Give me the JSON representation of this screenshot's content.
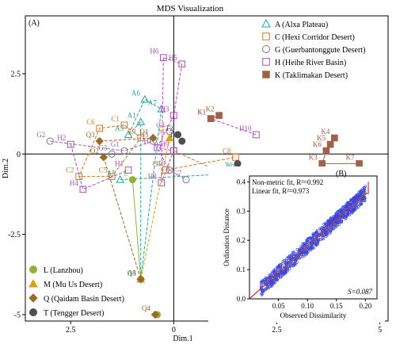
{
  "chart_data": [
    {
      "type": "scatter",
      "title": "MDS Visualization",
      "panel_label": "(A)",
      "xlabel": "Dim.1",
      "ylabel": "Dim.2",
      "xlim": [
        3.6,
        -5.2
      ],
      "ylim": [
        -5.2,
        4.3
      ],
      "x_ticks": [
        2.5,
        0,
        -2.5,
        -5
      ],
      "x_tick_labels": [
        "2.5",
        "0",
        "2.5",
        "5"
      ],
      "y_ticks": [
        2.5,
        0,
        -2.5,
        -5
      ],
      "y_tick_labels": [
        "2.5",
        "0",
        "-2.5",
        "-5"
      ],
      "reference_lines": {
        "x": 0,
        "y": 0
      },
      "grid": false,
      "legend_placement": [
        "top-right",
        "bottom-left"
      ],
      "series": [
        {
          "key": "A",
          "name": "A (Alxa Plateau)",
          "color": "#2aa198",
          "marker": "triangle-open",
          "lines": [
            [
              0,
              1,
              2,
              3,
              4,
              0
            ],
            [
              5,
              6,
              7
            ]
          ],
          "points": [
            {
              "label": "A1",
              "x": 0.8,
              "y": 1.0
            },
            {
              "label": "A3",
              "x": 1.1,
              "y": 0.6
            },
            {
              "label": "A6",
              "x": 0.7,
              "y": 1.7
            },
            {
              "label": "A7",
              "x": 0.3,
              "y": 1.4
            },
            {
              "label": "A4",
              "x": 0.8,
              "y": -3.9
            },
            {
              "label": "A5",
              "x": 1.3,
              "y": -0.8
            },
            {
              "label": "A2",
              "x": -1.6,
              "y": -0.6
            },
            {
              "label": "T1",
              "x": -1.55,
              "y": -0.55
            }
          ]
        },
        {
          "key": "C",
          "name": "C (Hexi Corridor Desert)",
          "color": "#c8792a",
          "marker": "square-open",
          "lines": [
            [
              0,
              1,
              2,
              3,
              4,
              0
            ],
            [
              5,
              6
            ],
            [
              7,
              8
            ]
          ],
          "points": [
            {
              "label": "C1",
              "x": 1.2,
              "y": 0.9
            },
            {
              "label": "C6",
              "x": 1.8,
              "y": 0.8
            },
            {
              "label": "C2",
              "x": 2.3,
              "y": -0.7
            },
            {
              "label": "C5",
              "x": 1.5,
              "y": -0.7
            },
            {
              "label": "C3",
              "x": 0.8,
              "y": 0.5
            },
            {
              "label": "C4",
              "x": 0.2,
              "y": -0.5
            },
            {
              "label": "C8",
              "x": -1.5,
              "y": -0.1
            },
            {
              "label": "C7",
              "x": -1.45,
              "y": -0.75
            },
            {
              "label": "",
              "x": 0.0,
              "y": 0.1
            }
          ]
        },
        {
          "key": "G",
          "name": "G (Guerbantonggute Desert)",
          "color": "#8c6e99",
          "marker": "circle-open",
          "lines": [
            [
              0,
              1,
              2,
              3,
              4
            ]
          ],
          "points": [
            {
              "label": "G2",
              "x": 3.0,
              "y": 0.4
            },
            {
              "label": "G1",
              "x": 1.2,
              "y": 0.1
            },
            {
              "label": "G5",
              "x": 0.5,
              "y": 0.4
            },
            {
              "label": "G6",
              "x": 0.1,
              "y": -0.5
            },
            {
              "label": "G7",
              "x": -0.3,
              "y": -0.8
            },
            {
              "label": "G4",
              "x": 0.1,
              "y": 0.7
            },
            {
              "label": "G3",
              "x": 1.5,
              "y": 0.0
            }
          ]
        },
        {
          "key": "H",
          "name": "H (Heihe River Basin)",
          "color": "#b04cb8",
          "marker": "square-open",
          "lines": [
            [
              0,
              1,
              2,
              3,
              4,
              5,
              0
            ],
            [
              6,
              7,
              8
            ],
            [
              9,
              10
            ]
          ],
          "points": [
            {
              "label": "H6",
              "x": 0.25,
              "y": 3.0
            },
            {
              "label": "H5",
              "x": -0.2,
              "y": 2.8
            },
            {
              "label": "H3",
              "x": 0.0,
              "y": 1.2
            },
            {
              "label": "H7",
              "x": 0.4,
              "y": 0.2
            },
            {
              "label": "H9",
              "x": 0.0,
              "y": 0.1
            },
            {
              "label": "H8",
              "x": 0.3,
              "y": -0.9
            },
            {
              "label": "H2",
              "x": 2.5,
              "y": 0.3
            },
            {
              "label": "H4",
              "x": 2.2,
              "y": -1.1
            },
            {
              "label": "H1",
              "x": 1.1,
              "y": -0.5
            },
            {
              "label": "H10",
              "x": -2.0,
              "y": 0.6
            },
            {
              "label": "K1",
              "x": -0.9,
              "y": 1.1
            }
          ]
        },
        {
          "key": "K",
          "name": "K (Taklimakan Desert)",
          "color": "#a0604a",
          "marker": "square-filled",
          "lines": [
            [
              0,
              1
            ],
            [
              2,
              3,
              4,
              5,
              6
            ]
          ],
          "points": [
            {
              "label": "K1",
              "x": -0.9,
              "y": 1.1
            },
            {
              "label": "K2",
              "x": -1.1,
              "y": 1.2
            },
            {
              "label": "K4",
              "x": -3.9,
              "y": 0.5
            },
            {
              "label": "K5",
              "x": -3.8,
              "y": 0.3
            },
            {
              "label": "K6",
              "x": -3.7,
              "y": 0.1
            },
            {
              "label": "K3",
              "x": -3.6,
              "y": -0.3
            },
            {
              "label": "K7",
              "x": -4.5,
              "y": -0.3
            }
          ]
        },
        {
          "key": "L",
          "name": "L (Lanzhou)",
          "color": "#8fb23a",
          "marker": "circle-filled",
          "lines": [
            [
              1,
              0
            ]
          ],
          "points": [
            {
              "label": "L",
              "x": 1.0,
              "y": -0.8
            },
            {
              "label": "",
              "x": 0.8,
              "y": -3.9
            },
            {
              "label": "",
              "x": 0.4,
              "y": -5.0
            }
          ]
        },
        {
          "key": "M",
          "name": "M (Mu Us Desert)",
          "color": "#d6a21e",
          "marker": "triangle-filled",
          "lines": [
            [
              1,
              0
            ]
          ],
          "points": [
            {
              "label": "M",
              "x": 0.1,
              "y": 0.5
            },
            {
              "label": "",
              "x": 0.8,
              "y": -3.9
            }
          ]
        },
        {
          "key": "Q",
          "name": "Q (Qaidam Basin Desert)",
          "color": "#9b6a2a",
          "marker": "diamond-filled",
          "lines": [
            [
              0,
              1
            ],
            [
              2,
              3
            ]
          ],
          "points": [
            {
              "label": "Q3",
              "x": 1.8,
              "y": 0.4
            },
            {
              "label": "Q1",
              "x": 0.5,
              "y": 0.5
            },
            {
              "label": "Q2",
              "x": 1.7,
              "y": -0.1
            },
            {
              "label": "Q5",
              "x": 0.8,
              "y": -3.9
            },
            {
              "label": "Q4",
              "x": 0.45,
              "y": -5.0
            }
          ]
        },
        {
          "key": "T",
          "name": "T (Tengger Desert)",
          "color": "#505050",
          "marker": "circle-filled",
          "lines": [
            [
              0,
              1
            ],
            [
              2,
              3
            ]
          ],
          "points": [
            {
              "label": "T2",
              "x": -0.1,
              "y": 0.6
            },
            {
              "label": "T3",
              "x": -0.2,
              "y": 0.4
            },
            {
              "label": "",
              "x": -1.55,
              "y": -0.3
            },
            {
              "label": "",
              "x": -1.6,
              "y": -0.55
            }
          ]
        }
      ]
    },
    {
      "type": "scatter",
      "panel_label": "(B)",
      "xlabel": "Observed Dissimilarity",
      "ylabel": "Ordination Distance",
      "xlim": [
        0,
        0.22
      ],
      "ylim": [
        0,
        0.42
      ],
      "x_ticks": [
        0.05,
        0.1,
        0.15,
        0.2
      ],
      "x_tick_labels": [
        "0.05",
        "0.10",
        "0.15",
        "0.20"
      ],
      "y_ticks": [
        0,
        0.1,
        0.2,
        0.3,
        0.4
      ],
      "y_tick_labels": [
        "0.0",
        "0.1",
        "0.2",
        "0.3",
        "0.4"
      ],
      "annotations": [
        "Non-metric fit, R²=0.992",
        "Linear fit, R²=0.973"
      ],
      "stress_text": "S=0.087",
      "point_color": "#3b45d8",
      "fit_color": "#c0392b",
      "point_range_x": [
        0.02,
        0.2
      ],
      "point_count": 900,
      "fit_steps": [
        [
          0.0,
          0.0
        ],
        [
          0.2,
          0.36
        ],
        [
          0.205,
          0.36
        ],
        [
          0.205,
          0.4
        ]
      ]
    }
  ]
}
